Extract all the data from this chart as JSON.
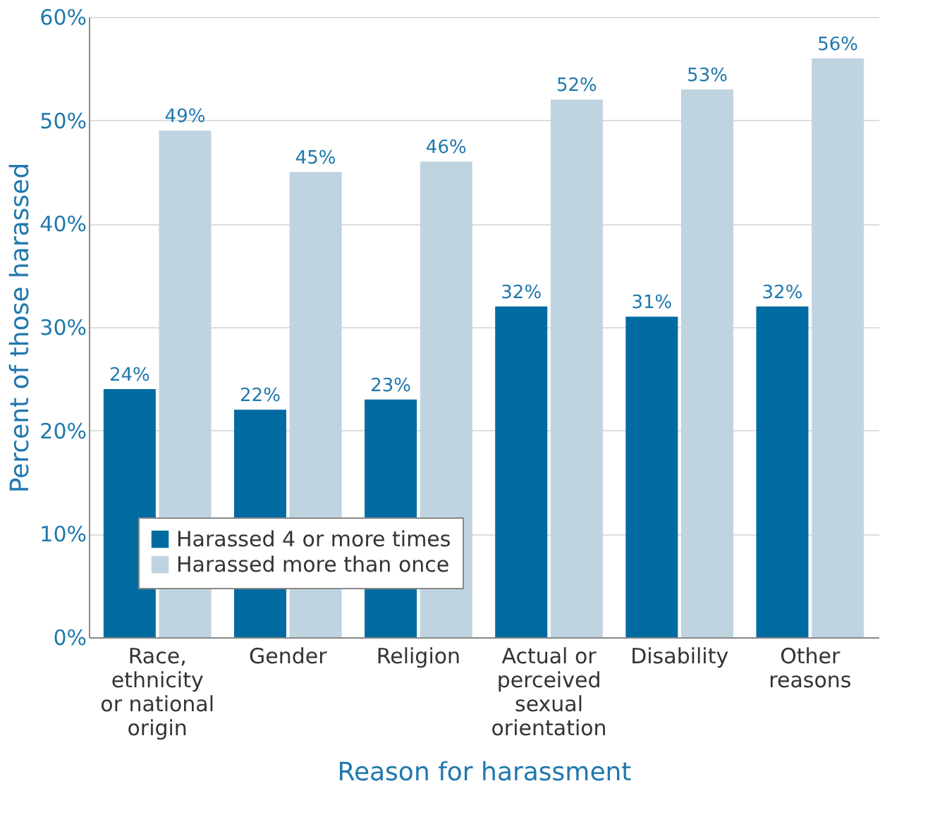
{
  "chart_data": {
    "type": "bar",
    "xlabel": "Reason for harassment",
    "ylabel": "Percent of those harassed",
    "categories": [
      "Race, ethnicity or national origin",
      "Gender",
      "Religion",
      "Actual or perceived sexual orientation",
      "Disability",
      "Other reasons"
    ],
    "series": [
      {
        "name": "Harassed 4 or more times",
        "color": "#006ba1",
        "values": [
          24,
          22,
          23,
          32,
          31,
          32
        ],
        "value_labels": [
          "24%",
          "22%",
          "23%",
          "32%",
          "31%",
          "32%"
        ]
      },
      {
        "name": "Harassed more than once",
        "color": "#c0d3e0",
        "values": [
          49,
          45,
          46,
          52,
          53,
          56
        ],
        "value_labels": [
          "49%",
          "45%",
          "46%",
          "52%",
          "53%",
          "56%"
        ]
      }
    ],
    "ylim": [
      0,
      60
    ],
    "yticks": [
      {
        "value": 0,
        "label": "0%"
      },
      {
        "value": 10,
        "label": "10%"
      },
      {
        "value": 20,
        "label": "20%"
      },
      {
        "value": 30,
        "label": "30%"
      },
      {
        "value": 40,
        "label": "40%"
      },
      {
        "value": 50,
        "label": "50%"
      },
      {
        "value": 60,
        "label": "60%"
      }
    ],
    "grid": "y",
    "legend": "bottom left"
  }
}
